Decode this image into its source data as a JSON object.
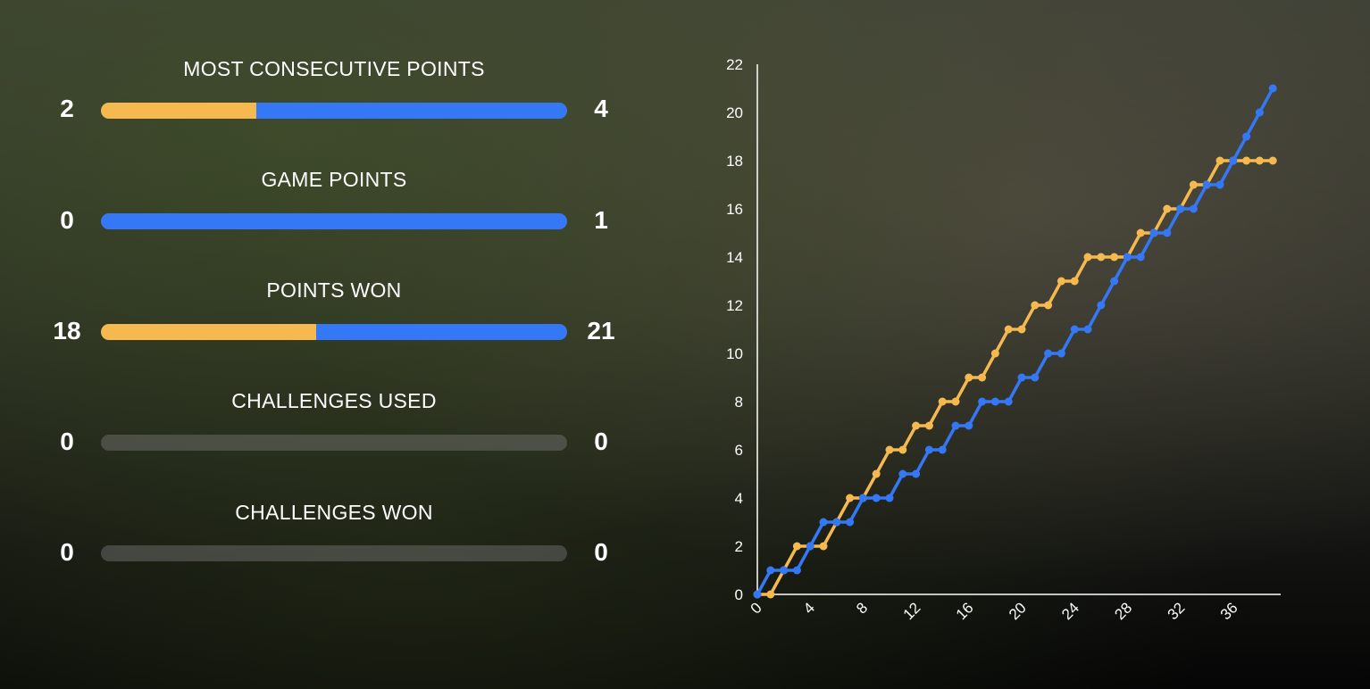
{
  "colors": {
    "player_a": "#f5b94f",
    "player_b": "#3478f6",
    "empty": "#777777"
  },
  "stats": [
    {
      "label": "MOST CONSECUTIVE POINTS",
      "left": 2,
      "right": 4
    },
    {
      "label": "GAME POINTS",
      "left": 0,
      "right": 1
    },
    {
      "label": "POINTS WON",
      "left": 18,
      "right": 21
    },
    {
      "label": "CHALLENGES USED",
      "left": 0,
      "right": 0
    },
    {
      "label": "CHALLENGES WON",
      "left": 0,
      "right": 0
    }
  ],
  "chart_data": {
    "type": "line",
    "title": "",
    "xlabel": "",
    "ylabel": "",
    "xlim": [
      0,
      39
    ],
    "ylim": [
      0,
      22
    ],
    "x_ticks": [
      0,
      4,
      8,
      12,
      16,
      20,
      24,
      28,
      32,
      36
    ],
    "y_ticks": [
      0,
      2,
      4,
      6,
      8,
      10,
      12,
      14,
      16,
      18,
      20,
      22
    ],
    "grid": false,
    "series": [
      {
        "color": "#f5b94f",
        "values": [
          0,
          0,
          1,
          2,
          2,
          2,
          3,
          4,
          4,
          5,
          6,
          6,
          7,
          7,
          8,
          8,
          9,
          9,
          10,
          11,
          11,
          12,
          12,
          13,
          13,
          14,
          14,
          14,
          14,
          15,
          15,
          16,
          16,
          17,
          17,
          18,
          18,
          18,
          18,
          18
        ]
      },
      {
        "color": "#3478f6",
        "values": [
          0,
          1,
          1,
          1,
          2,
          3,
          3,
          3,
          4,
          4,
          4,
          5,
          5,
          6,
          6,
          7,
          7,
          8,
          8,
          8,
          9,
          9,
          10,
          10,
          11,
          11,
          12,
          13,
          14,
          14,
          15,
          15,
          16,
          16,
          17,
          17,
          18,
          19,
          20,
          21
        ]
      }
    ]
  }
}
